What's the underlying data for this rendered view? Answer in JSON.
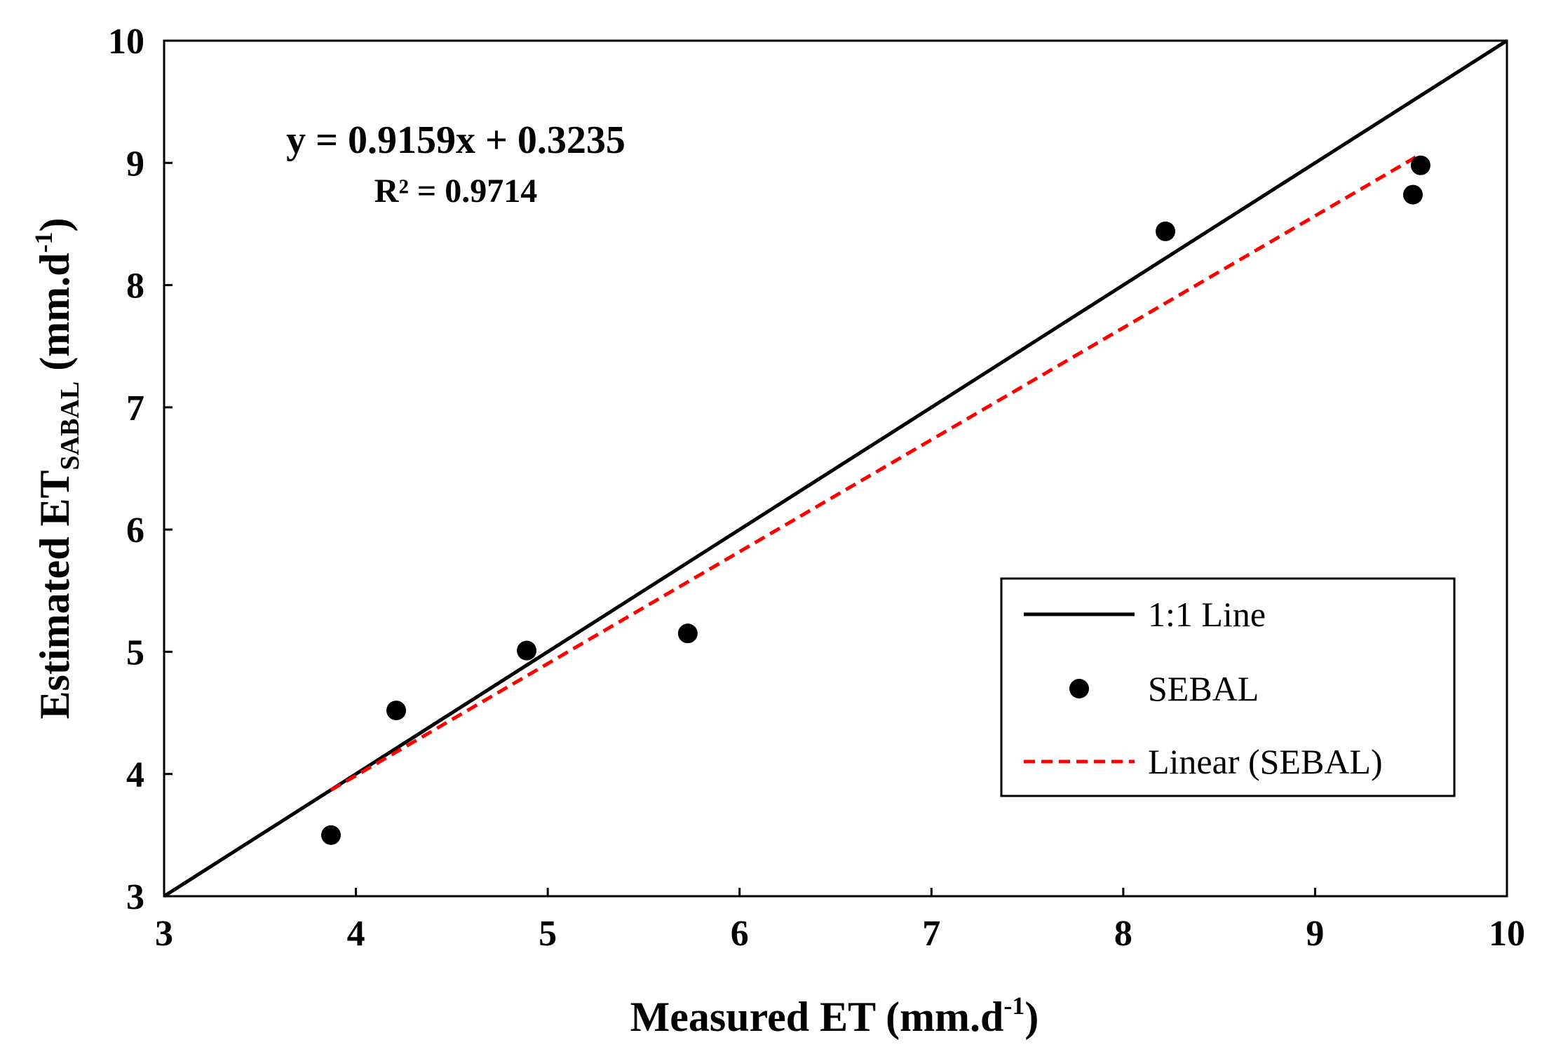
{
  "chart_data": {
    "type": "scatter",
    "title": "",
    "xlabel": {
      "main": "Measured ET (mm.d",
      "sup": "-1",
      "end": ")"
    },
    "ylabel": {
      "main": "Estimated ET",
      "sub": "SABAL",
      "mid": " (mm.d",
      "sup": "-1",
      "end": ")"
    },
    "xlim": [
      3,
      10
    ],
    "ylim": [
      3,
      10
    ],
    "xticks": [
      "3",
      "4",
      "5",
      "6",
      "7",
      "8",
      "9",
      "10"
    ],
    "yticks": [
      "3",
      "4",
      "5",
      "6",
      "7",
      "8",
      "9",
      "10"
    ],
    "grid": false,
    "series": [
      {
        "name": "1:1 Line",
        "kind": "line",
        "color": "#000000",
        "points": [
          [
            3,
            3
          ],
          [
            10,
            10
          ]
        ]
      },
      {
        "name": "SEBAL",
        "kind": "scatter",
        "color": "#000000",
        "points": [
          [
            3.87,
            3.5
          ],
          [
            4.21,
            4.52
          ],
          [
            4.89,
            5.01
          ],
          [
            5.73,
            5.15
          ],
          [
            8.22,
            8.44
          ],
          [
            9.51,
            8.74
          ],
          [
            9.55,
            8.98
          ]
        ]
      },
      {
        "name": "Linear (SEBAL)",
        "kind": "trendline",
        "color": "#ff0000",
        "dash": "dashed",
        "slope": 0.9159,
        "intercept": 0.3235,
        "x_range": [
          3.87,
          9.55
        ]
      }
    ],
    "annotations": {
      "equation": "y = 0.9159x + 0.3235",
      "r_squared": "R² = 0.9714"
    },
    "legend": {
      "placement": "bottom-right",
      "entries": [
        "1:1 Line",
        "SEBAL",
        "Linear (SEBAL)"
      ]
    }
  }
}
